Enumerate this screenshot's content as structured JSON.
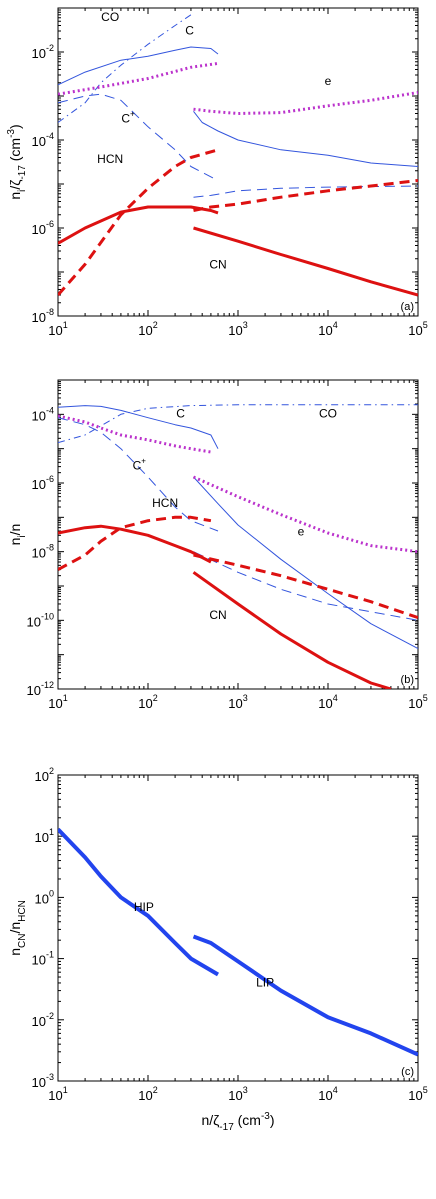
{
  "chart_data": [
    {
      "type": "line",
      "panel": "(a)",
      "xscale": "log",
      "yscale": "log",
      "xlim": [
        10,
        100000
      ],
      "ylim": [
        1e-08,
        0.1
      ],
      "xticks": [
        10,
        100,
        1000,
        10000,
        100000
      ],
      "xtick_labels": [
        "10^1",
        "10^2",
        "10^3",
        "10^4",
        "10^5"
      ],
      "yticks": [
        1e-08,
        1e-06,
        0.0001,
        0.01
      ],
      "ytick_labels": [
        "10^-8",
        "10^-6",
        "10^-4",
        "10^-2"
      ],
      "ylabel": "n_i/ζ_-17 (cm^-3)",
      "xlabel": "",
      "annotations": [
        {
          "text": "CO",
          "x": 38,
          "y": 0.05
        },
        {
          "text": "C",
          "x": 290,
          "y": 0.025
        },
        {
          "text": "e",
          "x": 10000,
          "y": 0.0018
        },
        {
          "text": "C+",
          "x": 60,
          "y": 0.00025
        },
        {
          "text": "HCN",
          "x": 38,
          "y": 3e-05
        },
        {
          "text": "CN",
          "x": 600,
          "y": 1.2e-07
        }
      ],
      "series": [
        {
          "label": "CO",
          "color": "#3355dd",
          "dash": "dashdot",
          "width": 1,
          "x": [
            10,
            20,
            30,
            50,
            100,
            200,
            300
          ],
          "y": [
            0.00025,
            0.0007,
            0.002,
            0.005,
            0.015,
            0.04,
            0.07
          ]
        },
        {
          "label": "C",
          "color": "#3355dd",
          "dash": "solid",
          "width": 1,
          "x": [
            10,
            20,
            50,
            100,
            200,
            300,
            500,
            600
          ],
          "y": [
            0.0018,
            0.0035,
            0.0065,
            0.008,
            0.011,
            0.013,
            0.012,
            0.009
          ]
        },
        {
          "label": "C",
          "color": "#3355dd",
          "dash": "solid",
          "width": 1,
          "x": [
            320,
            400,
            600,
            1000,
            3000,
            10000,
            30000,
            100000
          ],
          "y": [
            0.00045,
            0.00025,
            0.00016,
            0.0001,
            6e-05,
            4.5e-05,
            3e-05,
            2.5e-05
          ]
        },
        {
          "label": "e",
          "color": "#bb33cc",
          "dash": "dotted",
          "width": 3,
          "x": [
            10,
            30,
            100,
            300,
            600
          ],
          "y": [
            0.0011,
            0.0016,
            0.0025,
            0.0045,
            0.0055
          ]
        },
        {
          "label": "e",
          "color": "#bb33cc",
          "dash": "dotted",
          "width": 3,
          "x": [
            320,
            500,
            1000,
            3000,
            10000,
            30000,
            100000
          ],
          "y": [
            0.0005,
            0.00045,
            0.0004,
            0.00042,
            0.0006,
            0.0008,
            0.0012
          ]
        },
        {
          "label": "C+",
          "color": "#3355dd",
          "dash": "dashed",
          "width": 1,
          "x": [
            10,
            20,
            30,
            50,
            100,
            200,
            300,
            600
          ],
          "y": [
            0.0007,
            0.001,
            0.0011,
            0.0008,
            0.0002,
            6e-05,
            2.5e-05,
            1.2e-05
          ]
        },
        {
          "label": "C+",
          "color": "#3355dd",
          "dash": "dashed",
          "width": 1,
          "x": [
            320,
            500,
            1000,
            3000,
            10000,
            100000
          ],
          "y": [
            5e-06,
            5.5e-06,
            7e-06,
            8e-06,
            8.5e-06,
            9e-06
          ]
        },
        {
          "label": "HCN",
          "color": "#dd1111",
          "dash": "dashed",
          "width": 3,
          "x": [
            10,
            20,
            50,
            100,
            200,
            300,
            600
          ],
          "y": [
            3e-08,
            1.5e-07,
            2e-06,
            8e-06,
            2.5e-05,
            4e-05,
            6e-05
          ]
        },
        {
          "label": "HCN",
          "color": "#dd1111",
          "dash": "dashed",
          "width": 3,
          "x": [
            320,
            500,
            1000,
            3000,
            10000,
            30000,
            100000
          ],
          "y": [
            2.5e-06,
            3e-06,
            3.5e-06,
            5e-06,
            7e-06,
            9e-06,
            1.2e-05
          ]
        },
        {
          "label": "CN",
          "color": "#dd1111",
          "dash": "solid",
          "width": 3,
          "x": [
            10,
            20,
            50,
            100,
            200,
            300,
            500,
            600
          ],
          "y": [
            4.5e-07,
            1e-06,
            2.3e-06,
            3e-06,
            3e-06,
            3e-06,
            2.5e-06,
            2.2e-06
          ]
        },
        {
          "label": "CN",
          "color": "#dd1111",
          "dash": "solid",
          "width": 3,
          "x": [
            320,
            1000,
            3000,
            10000,
            30000,
            100000
          ],
          "y": [
            1e-06,
            5e-07,
            2.5e-07,
            1.2e-07,
            6e-08,
            3e-08
          ]
        }
      ]
    },
    {
      "type": "line",
      "panel": "(b)",
      "xscale": "log",
      "yscale": "log",
      "xlim": [
        10,
        100000
      ],
      "ylim": [
        1e-12,
        0.001
      ],
      "xticks": [
        10,
        100,
        1000,
        10000,
        100000
      ],
      "xtick_labels": [
        "10^1",
        "10^2",
        "10^3",
        "10^4",
        "10^5"
      ],
      "yticks": [
        1e-12,
        1e-10,
        1e-08,
        1e-06,
        0.0001
      ],
      "ytick_labels": [
        "10^-12",
        "10^-10",
        "10^-8",
        "10^-6",
        "10^-4"
      ],
      "ylabel": "n_i/n",
      "xlabel": "",
      "annotations": [
        {
          "text": "CO",
          "x": 10000,
          "y": 8e-05
        },
        {
          "text": "C",
          "x": 230,
          "y": 8e-05
        },
        {
          "text": "C+",
          "x": 80,
          "y": 2.5e-06
        },
        {
          "text": "HCN",
          "x": 155,
          "y": 2e-07
        },
        {
          "text": "e",
          "x": 5000,
          "y": 3e-08
        },
        {
          "text": "CN",
          "x": 600,
          "y": 1.1e-10
        }
      ],
      "series": [
        {
          "label": "CO",
          "color": "#3355dd",
          "dash": "dashdot",
          "width": 1,
          "x": [
            10,
            20,
            50,
            100,
            300,
            1000,
            3000,
            10000,
            30000,
            100000
          ],
          "y": [
            1.5e-05,
            2.5e-05,
            0.0001,
            0.00015,
            0.00018,
            0.00019,
            0.00019,
            0.00019,
            0.00019,
            0.00019
          ]
        },
        {
          "label": "C",
          "color": "#3355dd",
          "dash": "solid",
          "width": 1,
          "x": [
            10,
            20,
            30,
            50,
            100,
            200,
            300,
            500,
            600
          ],
          "y": [
            0.00016,
            0.00018,
            0.00017,
            0.00013,
            8e-05,
            5e-05,
            4e-05,
            2.5e-05,
            1e-05
          ]
        },
        {
          "label": "C",
          "color": "#3355dd",
          "dash": "solid",
          "width": 1,
          "x": [
            320,
            600,
            1000,
            3000,
            10000,
            30000,
            100000
          ],
          "y": [
            1.5e-06,
            2.5e-07,
            6e-08,
            6e-09,
            6e-10,
            8e-11,
            1.5e-11
          ]
        },
        {
          "label": "e",
          "color": "#bb33cc",
          "dash": "dotted",
          "width": 3,
          "x": [
            10,
            20,
            30,
            50,
            100,
            200,
            300,
            500
          ],
          "y": [
            9e-05,
            6e-05,
            4e-05,
            2.5e-05,
            1.8e-05,
            1.2e-05,
            1e-05,
            8e-06
          ]
        },
        {
          "label": "e",
          "color": "#bb33cc",
          "dash": "dotted",
          "width": 3,
          "x": [
            320,
            1000,
            3000,
            10000,
            30000,
            100000
          ],
          "y": [
            1.5e-06,
            4e-07,
            1.2e-07,
            3.5e-08,
            1.5e-08,
            1e-08
          ]
        },
        {
          "label": "C+",
          "color": "#3355dd",
          "dash": "dashed",
          "width": 1,
          "x": [
            10,
            20,
            30,
            50,
            100,
            200,
            300,
            600
          ],
          "y": [
            8e-05,
            5e-05,
            3e-05,
            1e-05,
            1.5e-06,
            2e-07,
            8e-08,
            4e-08
          ]
        },
        {
          "label": "C+",
          "color": "#3355dd",
          "dash": "dashed",
          "width": 1,
          "x": [
            320,
            1000,
            3000,
            10000,
            100000
          ],
          "y": [
            1e-08,
            2.5e-09,
            8e-10,
            3e-10,
            1e-10
          ]
        },
        {
          "label": "HCN",
          "color": "#dd1111",
          "dash": "dashed",
          "width": 3,
          "x": [
            10,
            20,
            30,
            50,
            100,
            200,
            300,
            500
          ],
          "y": [
            3e-09,
            8e-09,
            2e-08,
            5e-08,
            8e-08,
            1e-07,
            1e-07,
            8e-08
          ]
        },
        {
          "label": "HCN",
          "color": "#dd1111",
          "dash": "dashed",
          "width": 3,
          "x": [
            320,
            1000,
            3000,
            10000,
            30000,
            100000
          ],
          "y": [
            8e-09,
            4e-09,
            2e-09,
            8e-10,
            3.5e-10,
            1.2e-10
          ]
        },
        {
          "label": "CN",
          "color": "#dd1111",
          "dash": "solid",
          "width": 3,
          "x": [
            10,
            20,
            30,
            50,
            100,
            200,
            300,
            500
          ],
          "y": [
            3.5e-08,
            5e-08,
            5.5e-08,
            4.5e-08,
            3e-08,
            1.5e-08,
            1e-08,
            5e-09
          ]
        },
        {
          "label": "CN",
          "color": "#dd1111",
          "dash": "solid",
          "width": 3,
          "x": [
            320,
            1000,
            3000,
            10000,
            30000,
            50000
          ],
          "y": [
            2.5e-09,
            3e-10,
            4e-11,
            6e-12,
            1.5e-12,
            1e-12
          ]
        }
      ]
    },
    {
      "type": "line",
      "panel": "(c)",
      "xscale": "log",
      "yscale": "log",
      "xlim": [
        10,
        100000
      ],
      "ylim": [
        0.001,
        100
      ],
      "xticks": [
        10,
        100,
        1000,
        10000,
        100000
      ],
      "xtick_labels": [
        "10^1",
        "10^2",
        "10^3",
        "10^4",
        "10^5"
      ],
      "yticks": [
        0.001,
        0.01,
        0.1,
        1,
        10,
        100
      ],
      "ytick_labels": [
        "10^-3",
        "10^-2",
        "10^-1",
        "10^0",
        "10^1",
        "10^2"
      ],
      "ylabel": "n_CN/n_HCN",
      "xlabel": "n/ζ_-17 (cm^-3)",
      "annotations": [
        {
          "text": "HIP",
          "x": 90,
          "y": 0.6
        },
        {
          "text": "LIP",
          "x": 2000,
          "y": 0.035
        }
      ],
      "series": [
        {
          "label": "HIP",
          "color": "#2244ee",
          "dash": "solid",
          "width": 4,
          "x": [
            10,
            20,
            30,
            50,
            100,
            200,
            300,
            600
          ],
          "y": [
            13,
            4.5,
            2.2,
            1,
            0.5,
            0.18,
            0.1,
            0.055
          ]
        },
        {
          "label": "LIP",
          "color": "#2244ee",
          "dash": "solid",
          "width": 4,
          "x": [
            320,
            500,
            1000,
            3000,
            10000,
            30000,
            100000
          ],
          "y": [
            0.23,
            0.18,
            0.09,
            0.03,
            0.011,
            0.006,
            0.0027
          ]
        }
      ]
    }
  ]
}
